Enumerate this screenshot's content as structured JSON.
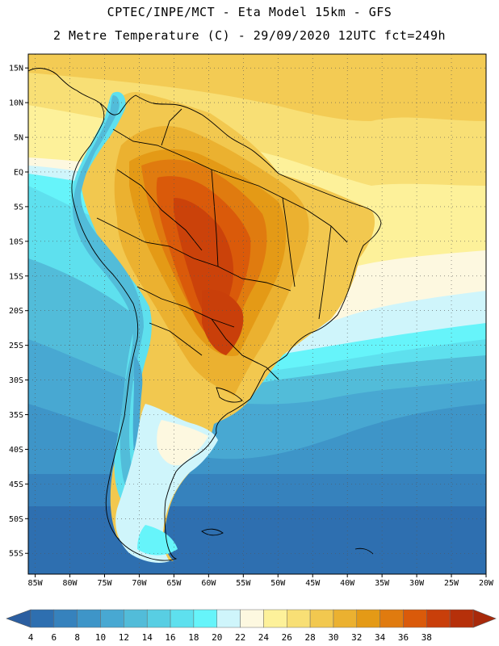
{
  "header": {
    "line1": "CPTEC/INPE/MCT  -   Eta Model 15km  - GFS",
    "line2": "2 Metre Temperature (C) - 29/09/2020 12UTC fct=249h"
  },
  "map": {
    "lat_range": [
      -58,
      17
    ],
    "lon_range": [
      -86,
      -20
    ],
    "lat_ticks": [
      {
        "value": 15,
        "label": "15N"
      },
      {
        "value": 10,
        "label": "10N"
      },
      {
        "value": 5,
        "label": "5N"
      },
      {
        "value": 0,
        "label": "EQ"
      },
      {
        "value": -5,
        "label": "5S"
      },
      {
        "value": -10,
        "label": "10S"
      },
      {
        "value": -15,
        "label": "15S"
      },
      {
        "value": -20,
        "label": "20S"
      },
      {
        "value": -25,
        "label": "25S"
      },
      {
        "value": -30,
        "label": "30S"
      },
      {
        "value": -35,
        "label": "35S"
      },
      {
        "value": -40,
        "label": "40S"
      },
      {
        "value": -45,
        "label": "45S"
      },
      {
        "value": -50,
        "label": "50S"
      },
      {
        "value": -55,
        "label": "55S"
      }
    ],
    "lon_ticks": [
      {
        "value": -85,
        "label": "85W"
      },
      {
        "value": -80,
        "label": "80W"
      },
      {
        "value": -75,
        "label": "75W"
      },
      {
        "value": -70,
        "label": "70W"
      },
      {
        "value": -65,
        "label": "65W"
      },
      {
        "value": -60,
        "label": "60W"
      },
      {
        "value": -55,
        "label": "55W"
      },
      {
        "value": -50,
        "label": "50W"
      },
      {
        "value": -45,
        "label": "45W"
      },
      {
        "value": -40,
        "label": "40W"
      },
      {
        "value": -35,
        "label": "35W"
      },
      {
        "value": -30,
        "label": "30W"
      },
      {
        "value": -25,
        "label": "25W"
      },
      {
        "value": -20,
        "label": "20W"
      }
    ]
  },
  "colorbar": {
    "labels": [
      "4",
      "6",
      "8",
      "10",
      "12",
      "14",
      "16",
      "18",
      "20",
      "22",
      "24",
      "26",
      "28",
      "30",
      "32",
      "34",
      "36",
      "38"
    ],
    "colors": [
      "#2e6fb0",
      "#3682bd",
      "#3e95c8",
      "#48a8d2",
      "#52bcd9",
      "#58cee3",
      "#5ee0ee",
      "#66f4fa",
      "#cff5fb",
      "#fdf8e0",
      "#fdf19a",
      "#f8df75",
      "#f2c84f",
      "#ebb130",
      "#e49a16",
      "#e07b0f",
      "#da5a0a",
      "#c93f0a",
      "#b6300a"
    ],
    "low_color": "#2b5ea0",
    "high_color": "#a8290a"
  }
}
